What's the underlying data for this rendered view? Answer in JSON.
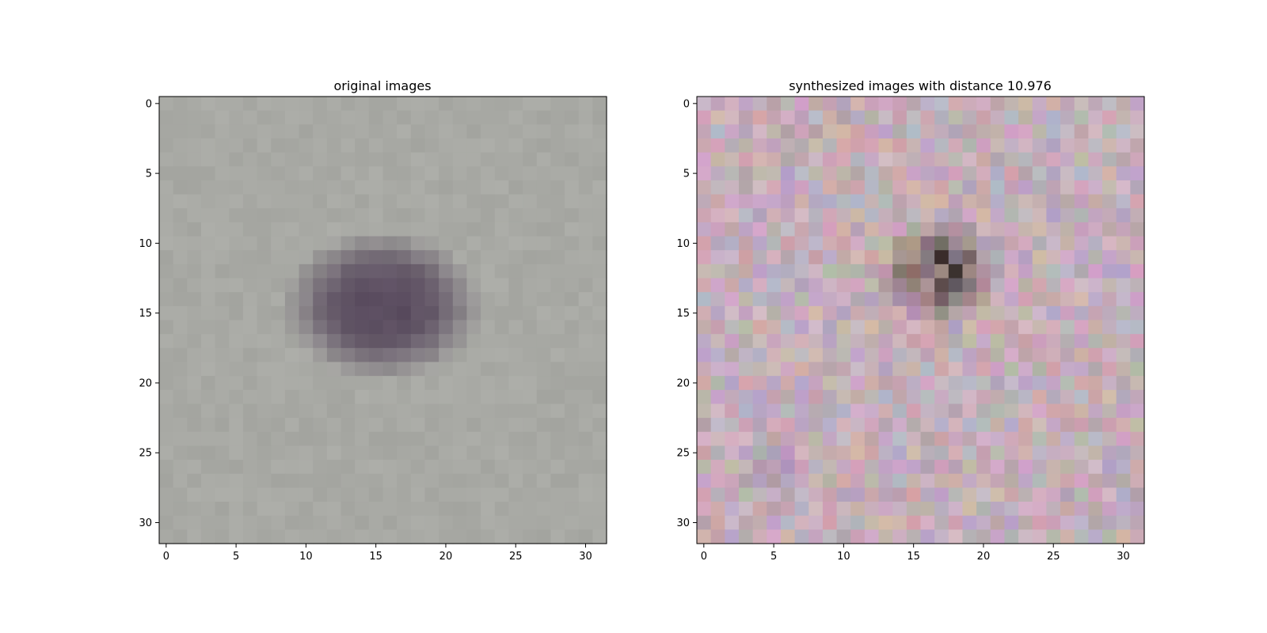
{
  "chart_data": [
    {
      "type": "heatmap",
      "title": "original images",
      "xlabel": "",
      "ylabel": "",
      "xlim": [
        -0.5,
        31.5
      ],
      "ylim": [
        31.5,
        -0.5
      ],
      "x_ticks": [
        0,
        5,
        10,
        15,
        20,
        25,
        30
      ],
      "y_ticks": [
        0,
        5,
        10,
        15,
        20,
        25,
        30
      ],
      "grid": false,
      "content": "32x32 RGB image: uniform light gray background with a dark purple-gray blob spanning roughly columns 10-21, rows 10-20",
      "base_color": "#a8a9a4",
      "feature_color": "#5b4d60"
    },
    {
      "type": "heatmap",
      "title": "synthesized images with distance 10.976",
      "xlabel": "",
      "ylabel": "",
      "xlim": [
        -0.5,
        31.5
      ],
      "ylim": [
        31.5,
        -0.5
      ],
      "x_ticks": [
        0,
        5,
        10,
        15,
        20,
        25,
        30
      ],
      "y_ticks": [
        0,
        5,
        10,
        15,
        20,
        25,
        30
      ],
      "grid": false,
      "content": "32x32 RGB image: noisy pinkish-mauve pixels with a dark brown/green cluster near columns 14-21, rows 7-16",
      "base_color": "#c3aeb8",
      "feature_color": "#4a3a2c"
    }
  ]
}
